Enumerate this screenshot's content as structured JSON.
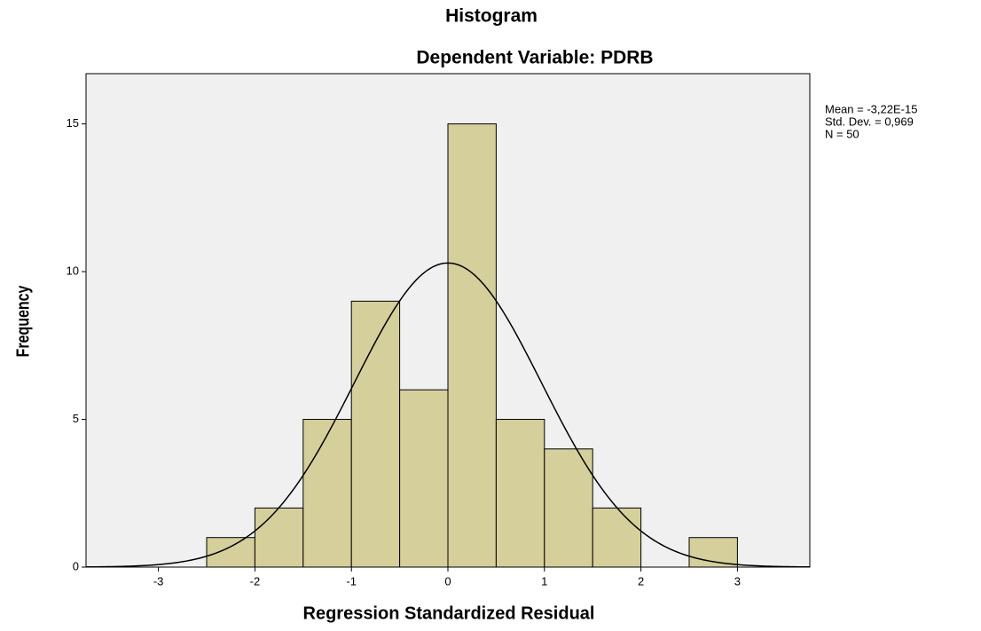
{
  "chart_data": {
    "type": "histogram",
    "title": "Histogram",
    "subtitle": "Dependent Variable: PDRB",
    "x_label": "Regression Standardized Residual",
    "y_label": "Frequency",
    "bins": [
      -2.5,
      -2,
      -1.5,
      -1,
      -0.5,
      0,
      0.5,
      1,
      1.5,
      2,
      2.5,
      3
    ],
    "values": [
      1,
      2,
      5,
      9,
      6,
      15,
      5,
      4,
      2,
      0,
      1
    ],
    "color": "#d4cf9b",
    "edge_color": "#000000",
    "plot_background": "#f0f0f0",
    "xlim": [
      -3.75,
      3.75
    ],
    "ylim": [
      0,
      16.7
    ],
    "xticks": [
      -3,
      -2,
      -1,
      0,
      1,
      2,
      3
    ],
    "yticks": [
      0,
      5,
      10,
      15
    ],
    "normal_curve": {
      "mean": -3.22e-15,
      "std_dev": 0.969,
      "n": 50,
      "labels": [
        "Mean = -3,22E-15",
        "Std. Dev. = 0,969",
        "N = 50"
      ]
    }
  }
}
